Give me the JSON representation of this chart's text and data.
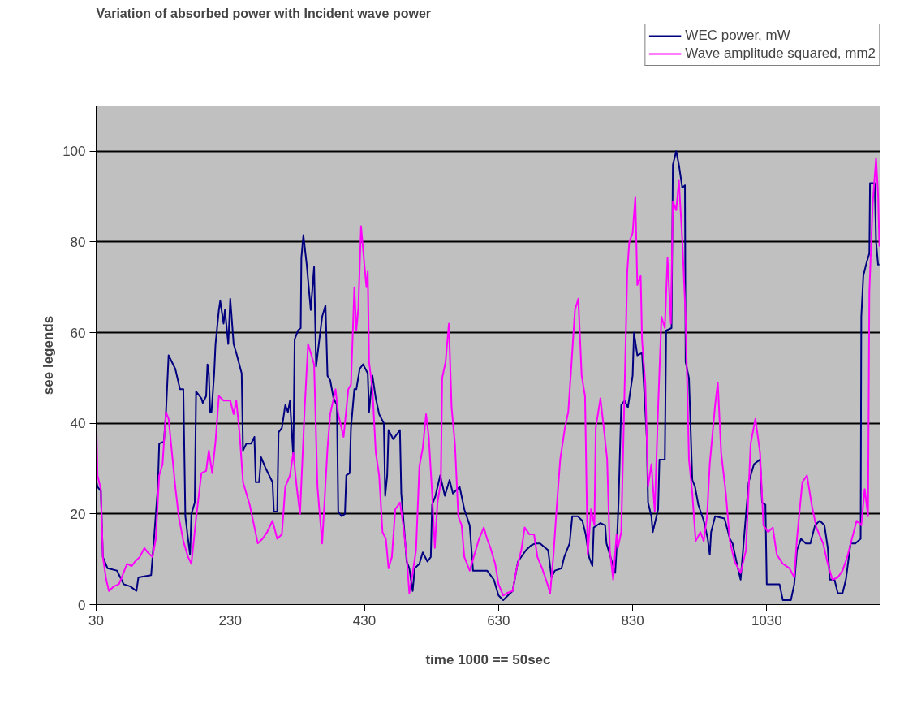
{
  "chart_data": {
    "type": "line",
    "title": "Variation of absorbed power with Incident wave power",
    "xlabel": "time 1000 == 50sec",
    "ylabel": "see legends",
    "xlim": [
      30,
      1199
    ],
    "xticks": [
      30,
      230,
      430,
      630,
      830,
      1030
    ],
    "ylim": [
      0,
      110
    ],
    "yticks": [
      0,
      20,
      40,
      60,
      80,
      100
    ],
    "grid": "y",
    "legend": "top right",
    "series": [
      {
        "name": "WEC power, mW",
        "color": "#000080",
        "x": [
          30,
          32,
          37,
          40,
          47,
          61,
          66,
          71,
          81,
          90,
          93,
          112,
          117,
          122,
          124,
          131,
          134,
          138,
          148,
          155,
          160,
          163,
          167,
          170,
          172,
          177,
          179,
          187,
          189,
          194,
          196,
          198,
          200,
          202,
          206,
          208,
          213,
          215,
          220,
          222,
          227,
          230,
          235,
          239,
          247,
          249,
          254,
          261,
          266,
          268,
          273,
          276,
          283,
          293,
          295,
          300,
          302,
          307,
          312,
          316,
          319,
          324,
          326,
          331,
          335,
          336,
          339,
          344,
          350,
          355,
          358,
          362,
          367,
          372,
          375,
          379,
          384,
          389,
          391,
          396,
          401,
          403,
          408,
          410,
          415,
          418,
          423,
          428,
          435,
          437,
          442,
          447,
          452,
          459,
          461,
          464,
          466,
          473,
          483,
          485,
          490,
          493,
          497,
          502,
          505,
          512,
          517,
          524,
          529,
          531,
          536,
          543,
          550,
          557,
          562,
          572,
          579,
          587,
          592,
          613,
          623,
          630,
          637,
          644,
          651,
          659,
          671,
          678,
          685,
          692,
          704,
          709,
          714,
          724,
          728,
          736,
          740,
          748,
          755,
          760,
          765,
          770,
          772,
          782,
          789,
          791,
          799,
          804,
          806,
          809,
          813,
          818,
          823,
          830,
          832,
          837,
          844,
          846,
          851,
          853,
          858,
          860,
          868,
          870,
          878,
          880,
          888,
          890,
          895,
          899,
          904,
          908,
          909,
          914,
          919,
          923,
          928,
          936,
          942,
          945,
          947,
          953,
          967,
          975,
          979,
          987,
          991,
          996,
          1003,
          1011,
          1020,
          1023,
          1028,
          1030,
          1049,
          1054,
          1066,
          1071,
          1075,
          1081,
          1088,
          1095,
          1102,
          1109,
          1116,
          1121,
          1124,
          1131,
          1136,
          1143,
          1148,
          1155,
          1162,
          1170,
          1171,
          1174,
          1179,
          1183,
          1184,
          1191,
          1193,
          1196,
          1198
        ],
        "values": [
          27.5,
          26,
          25,
          10.5,
          8,
          7.5,
          6,
          4.5,
          4,
          3,
          6,
          6.5,
          16,
          26,
          35.5,
          36,
          42,
          55,
          52,
          47.5,
          47.5,
          19.5,
          14.5,
          11,
          20,
          22.5,
          47,
          45.5,
          44.5,
          46,
          53,
          51,
          42.5,
          42.5,
          51,
          57.5,
          65,
          67,
          62,
          65,
          57.5,
          67.5,
          57.5,
          55.5,
          51,
          34,
          35.5,
          35.5,
          37,
          27,
          27,
          32.5,
          30,
          27,
          20.5,
          20.5,
          38,
          39,
          44,
          42.5,
          45,
          32.5,
          58.5,
          60.5,
          61,
          76.5,
          81.5,
          75,
          65,
          74.5,
          52.5,
          57.5,
          63.5,
          66,
          50.5,
          49.5,
          45.5,
          44,
          20.5,
          19.5,
          20,
          28.5,
          29,
          39,
          47.5,
          47.5,
          52,
          53,
          51,
          42.5,
          50.5,
          45.5,
          42,
          40,
          24,
          28.5,
          38.5,
          36.5,
          38.5,
          24.5,
          15.5,
          9.5,
          8,
          3,
          8,
          9,
          11.5,
          9.5,
          10.5,
          22,
          24,
          28.5,
          24,
          27.5,
          24.5,
          26,
          21,
          17.5,
          7.5,
          7.5,
          5.5,
          2,
          1,
          2,
          3,
          9.5,
          12,
          13,
          13.5,
          13.5,
          12,
          6,
          7.5,
          8,
          10.5,
          13.5,
          19.5,
          19.5,
          18.5,
          15.5,
          10.5,
          8.5,
          17,
          18,
          17.5,
          13.5,
          9.5,
          7,
          12,
          22.5,
          44,
          45,
          43.5,
          50.5,
          60,
          55,
          55.5,
          50.5,
          37,
          22.5,
          19.5,
          16,
          21,
          32,
          32,
          60.5,
          61,
          97,
          100,
          97,
          92,
          92.5,
          53.5,
          50,
          27.5,
          26,
          22,
          18.5,
          14.5,
          11,
          16,
          19.5,
          19,
          14.5,
          13.5,
          8,
          5.5,
          14.5,
          27,
          31,
          32,
          22.5,
          22,
          4.5,
          4.5,
          1,
          1,
          4.5,
          12,
          14.5,
          13.5,
          13.5,
          17.5,
          18.5,
          17.5,
          12.5,
          5.5,
          5.5,
          2.5,
          2.5,
          5.5,
          13.5,
          13.5,
          14.5,
          63.5,
          72.5,
          75.5,
          77.5,
          93,
          93,
          80,
          75,
          75
        ]
      },
      {
        "name": "Wave amplitude squared, mm2",
        "color": "#ff00ff",
        "x": [
          30,
          32,
          37,
          40,
          45,
          49,
          56,
          64,
          68,
          76,
          83,
          88,
          95,
          102,
          107,
          114,
          119,
          124,
          129,
          134,
          138,
          143,
          148,
          153,
          160,
          167,
          172,
          179,
          187,
          194,
          198,
          203,
          208,
          213,
          220,
          230,
          235,
          239,
          244,
          249,
          259,
          264,
          271,
          278,
          285,
          293,
          300,
          307,
          312,
          319,
          324,
          329,
          334,
          341,
          346,
          355,
          360,
          367,
          375,
          379,
          387,
          391,
          399,
          406,
          410,
          415,
          418,
          421,
          425,
          430,
          433,
          435,
          437,
          442,
          447,
          452,
          457,
          462,
          466,
          471,
          476,
          483,
          488,
          493,
          497,
          502,
          507,
          512,
          517,
          522,
          526,
          531,
          535,
          539,
          544,
          546,
          551,
          556,
          560,
          565,
          570,
          575,
          579,
          587,
          594,
          601,
          608,
          613,
          618,
          625,
          630,
          637,
          642,
          651,
          657,
          664,
          669,
          676,
          683,
          688,
          695,
          703,
          707,
          712,
          717,
          722,
          729,
          734,
          739,
          744,
          749,
          754,
          759,
          763,
          768,
          773,
          775,
          782,
          787,
          792,
          796,
          801,
          806,
          808,
          813,
          818,
          822,
          825,
          830,
          834,
          837,
          842,
          844,
          849,
          853,
          858,
          863,
          868,
          873,
          878,
          882,
          887,
          890,
          895,
          899,
          904,
          909,
          914,
          919,
          924,
          931,
          936,
          941,
          945,
          953,
          957,
          962,
          969,
          975,
          982,
          991,
          999,
          1006,
          1013,
          1020,
          1025,
          1032,
          1039,
          1045,
          1054,
          1064,
          1071,
          1075,
          1083,
          1090,
          1097,
          1104,
          1114,
          1121,
          1128,
          1136,
          1143,
          1150,
          1157,
          1164,
          1171,
          1176,
          1181,
          1183,
          1188,
          1193,
          1196,
          1198
        ],
        "values": [
          42,
          28.5,
          25.5,
          10.5,
          5.5,
          3,
          4,
          4.5,
          6,
          9,
          8.5,
          9.5,
          10.5,
          12.5,
          11.5,
          10.5,
          14.5,
          28.5,
          31,
          42.5,
          41,
          33.5,
          26,
          19.5,
          14,
          10.5,
          9,
          19,
          29,
          29.5,
          34,
          29,
          36,
          46,
          45,
          45,
          42,
          45,
          37.5,
          27,
          22,
          18.5,
          13.5,
          14.5,
          16,
          18.5,
          14.5,
          15.5,
          26,
          28.5,
          33.5,
          26,
          20,
          43.5,
          57.5,
          53,
          26,
          13.5,
          34.5,
          42,
          47.5,
          42,
          37,
          47.5,
          48.5,
          70,
          60.5,
          65.5,
          83.5,
          75,
          70,
          73.5,
          53.5,
          47.5,
          33.5,
          28.5,
          16,
          14.5,
          8,
          10.5,
          21,
          22.5,
          17.5,
          10.5,
          2.5,
          7,
          12,
          30.5,
          34.5,
          42,
          37,
          24.5,
          12.5,
          22.5,
          27,
          50,
          53.5,
          62,
          43.5,
          35.5,
          19.5,
          17.5,
          10.5,
          7.5,
          11,
          14.5,
          17,
          14.5,
          12.5,
          9,
          4.5,
          2,
          2.5,
          3,
          8,
          12,
          17,
          15.5,
          15.5,
          10.5,
          8,
          4.5,
          2.5,
          11,
          22,
          32,
          39,
          42.5,
          53.5,
          65,
          67.5,
          50.5,
          46,
          11,
          21,
          17.5,
          39,
          45.5,
          39,
          32,
          12,
          5.5,
          15.5,
          12.5,
          16,
          47.5,
          73.5,
          80,
          82,
          90,
          70.5,
          72.5,
          58.5,
          48.5,
          26,
          31,
          20.5,
          43.5,
          63.5,
          61,
          76.5,
          62,
          89,
          87,
          93.5,
          80.5,
          63.5,
          32,
          24.5,
          14,
          16,
          14,
          19.5,
          31,
          44,
          49,
          33.5,
          24.5,
          14,
          9.5,
          7,
          12,
          35.5,
          41,
          33.5,
          17.5,
          16,
          17,
          11,
          9,
          8,
          6,
          14.5,
          27,
          28.5,
          22,
          17,
          13.5,
          9,
          5.5,
          6,
          7.5,
          10.5,
          14.5,
          18.5,
          17.5,
          25.5,
          19.5,
          69,
          88.5,
          98.5,
          90.5,
          79
        ]
      }
    ]
  }
}
